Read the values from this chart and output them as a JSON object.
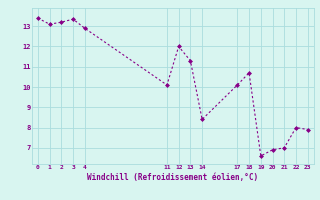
{
  "x": [
    0,
    1,
    2,
    3,
    4,
    11,
    12,
    13,
    14,
    17,
    18,
    19,
    20,
    21,
    22,
    23
  ],
  "y": [
    13.4,
    13.1,
    13.2,
    13.35,
    12.9,
    10.1,
    12.0,
    11.3,
    8.4,
    10.1,
    10.7,
    6.6,
    6.9,
    7.0,
    8.0,
    7.9
  ],
  "line_color": "#880088",
  "marker_color": "#880088",
  "bg_color": "#d8f5f0",
  "grid_color": "#aadddd",
  "tick_label_color": "#880088",
  "xlabel": "Windchill (Refroidissement éolien,°C)",
  "xlabel_color": "#880088",
  "yticks": [
    7,
    8,
    9,
    10,
    11,
    12,
    13
  ],
  "xticks": [
    0,
    1,
    2,
    3,
    4,
    11,
    12,
    13,
    14,
    17,
    18,
    19,
    20,
    21,
    22,
    23
  ],
  "ylim": [
    6.2,
    13.9
  ],
  "xlim": [
    -0.5,
    23.5
  ]
}
